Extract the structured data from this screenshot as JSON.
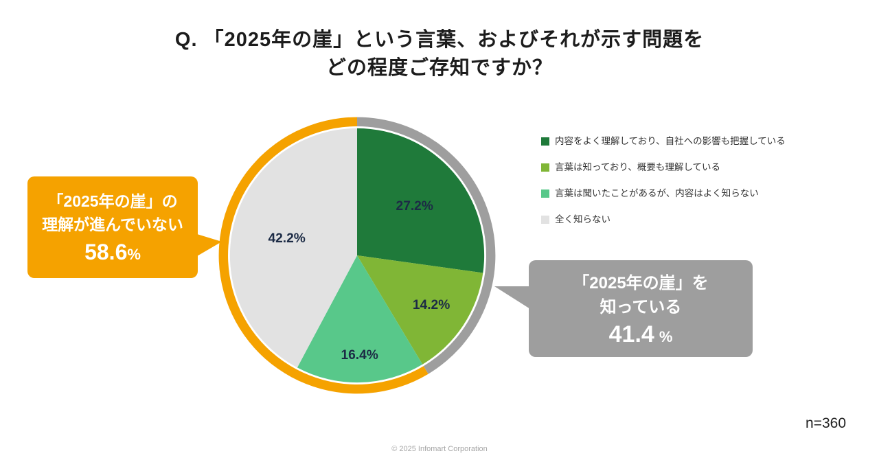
{
  "title": {
    "line1": "Q. 「2025年の崖」という言葉、およびそれが示す問題を",
    "line2": "どの程度ご存知ですか？"
  },
  "chart_data": {
    "type": "pie",
    "title": "Q. 「2025年の崖」という言葉、およびそれが示す問題をどの程度ご存知ですか？",
    "sample_size": "n=360",
    "start_angle_deg": 0,
    "direction": "clockwise",
    "categories": [
      "内容をよく理解しており、自社への影響も把握している",
      "言葉は知っており、概要も理解している",
      "言葉は聞いたことがあるが、内容はよく知らない",
      "全く知らない"
    ],
    "values": [
      27.2,
      14.2,
      16.4,
      42.2
    ],
    "labels": [
      "27.2%",
      "14.2%",
      "16.4%",
      "42.2%"
    ],
    "colors": [
      "#1f7a3a",
      "#80b636",
      "#58c88a",
      "#e2e2e2"
    ],
    "outer_ring": [
      {
        "label": "「2025年の崖」を知っている",
        "value": 41.4,
        "color": "#9e9e9e"
      },
      {
        "label": "「2025年の崖」の理解が進んでいない",
        "value": 58.6,
        "color": "#f5a200"
      }
    ]
  },
  "legend": {
    "items": [
      {
        "label": "内容をよく理解しており、自社への影響も把握している",
        "color": "#1f7a3a"
      },
      {
        "label": "言葉は知っており、概要も理解している",
        "color": "#80b636"
      },
      {
        "label": "言葉は聞いたことがあるが、内容はよく知らない",
        "color": "#58c88a"
      },
      {
        "label": "全く知らない",
        "color": "#e2e2e2"
      }
    ]
  },
  "callouts": {
    "left": {
      "line1": "「2025年の崖」の",
      "line2": "理解が進んでいない",
      "value": "58.6",
      "unit": "%",
      "color": "#f5a200"
    },
    "right": {
      "line1": "「2025年の崖」を",
      "line2": "知っている",
      "value": "41.4",
      "unit": "%",
      "color": "#9e9e9e"
    }
  },
  "footer": {
    "sample": "n=360",
    "copyright": "© 2025 Infomart Corporation"
  }
}
